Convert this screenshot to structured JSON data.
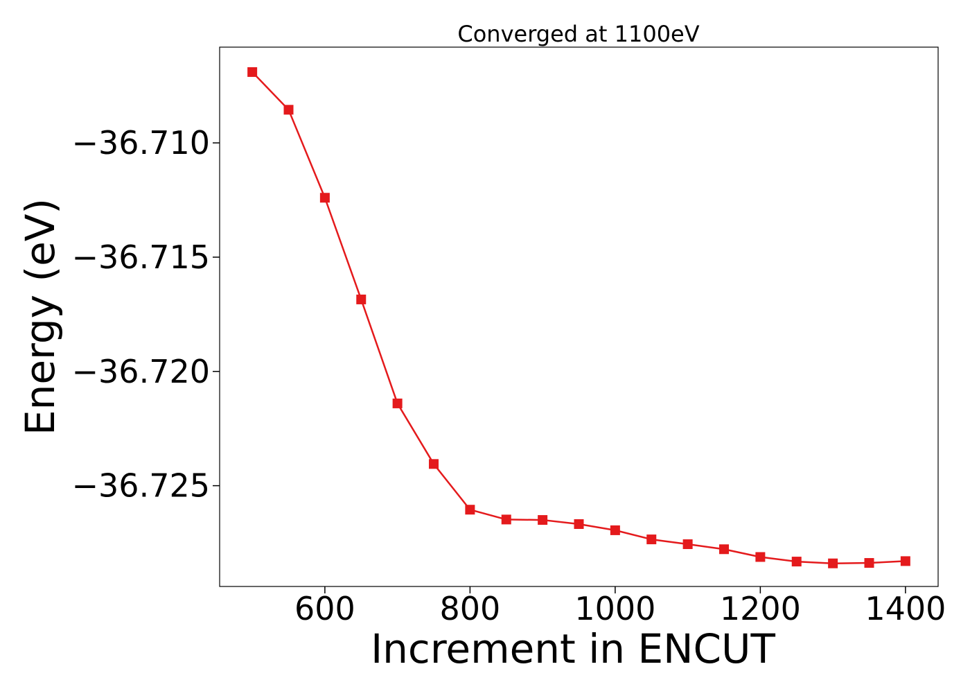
{
  "chart_data": {
    "type": "line",
    "title": "Converged at 1100eV",
    "xlabel": "Increment in ENCUT",
    "ylabel": "Energy (eV)",
    "xlim": [
      455,
      1445
    ],
    "ylim": [
      -36.72941,
      -36.70581
    ],
    "x_ticks": [
      600,
      800,
      1000,
      1200,
      1400
    ],
    "x_tick_labels": [
      "600",
      "800",
      "1000",
      "1200",
      "1400"
    ],
    "y_ticks": [
      -36.71,
      -36.715,
      -36.72,
      -36.725
    ],
    "y_tick_labels": [
      "−36.710",
      "−36.715",
      "−36.720",
      "−36.725"
    ],
    "grid": false,
    "series": [
      {
        "color": "#e41a1c",
        "marker": "square",
        "x": [
          500,
          550,
          600,
          650,
          700,
          750,
          800,
          850,
          900,
          950,
          1000,
          1050,
          1100,
          1150,
          1200,
          1250,
          1300,
          1350,
          1400
        ],
        "y": [
          -36.7069,
          -36.70855,
          -36.7124,
          -36.71685,
          -36.7214,
          -36.72405,
          -36.72605,
          -36.72648,
          -36.7265,
          -36.72668,
          -36.72695,
          -36.72735,
          -36.72756,
          -36.72778,
          -36.72812,
          -36.72832,
          -36.7284,
          -36.72838,
          -36.7283
        ]
      }
    ]
  }
}
